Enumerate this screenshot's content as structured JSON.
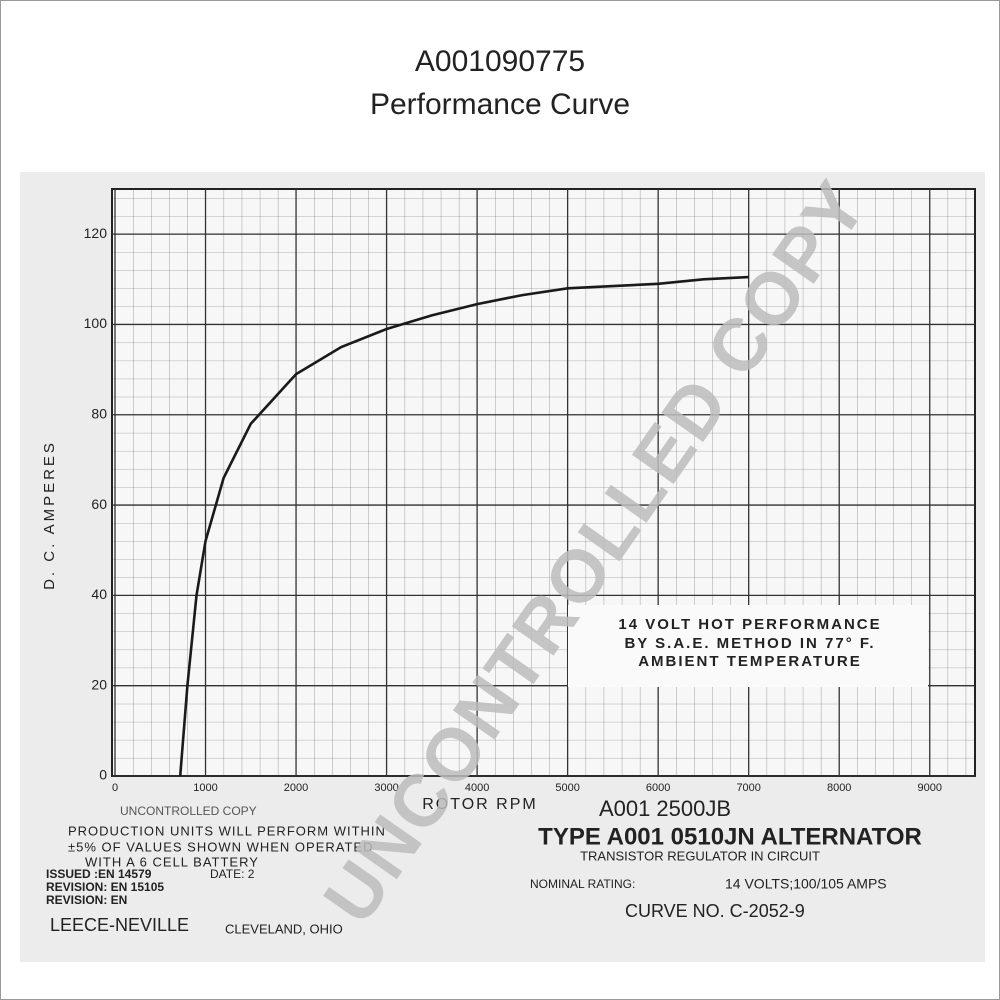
{
  "chart_data": {
    "type": "line",
    "title": "A001090775",
    "subtitle": "Performance Curve",
    "x_label": "ROTOR RPM",
    "y_label": "D. C. AMPERES",
    "x": [
      720,
      800,
      900,
      1000,
      1200,
      1500,
      2000,
      2500,
      3000,
      3500,
      4000,
      4500,
      5000,
      5500,
      6000,
      6500,
      7000
    ],
    "values": [
      0,
      20,
      40,
      52,
      66,
      78,
      89,
      95,
      99,
      102,
      104.5,
      106.5,
      108,
      108.5,
      109,
      110,
      110.5
    ],
    "color": "#1a1a1a",
    "xlim": [
      0,
      9500
    ],
    "ylim": [
      0,
      130
    ],
    "xticks": [
      0,
      1000,
      2000,
      3000,
      4000,
      5000,
      6000,
      7000,
      8000,
      9000
    ],
    "yticks": [
      0,
      20,
      40,
      60,
      80,
      100,
      120
    ],
    "grid": true,
    "annotation": [
      "14 VOLT HOT PERFORMANCE",
      "BY S.A.E. METHOD IN 77° F.",
      "AMBIENT TEMPERATURE"
    ],
    "watermark": "UNCONTROLLED COPY",
    "stamp": "UNCONTROLLED COPY",
    "notes": [
      "A001 2500JB",
      "TYPE A001 0510JN ALTERNATOR",
      "TRANSISTOR REGULATOR IN CIRCUIT",
      "NOMINAL RATING:",
      "14 VOLTS;100/105 AMPS",
      "CURVE NO. C-2052-9",
      "PRODUCTION UNITS WILL PERFORM WITHIN",
      "±5% OF VALUES SHOWN WHEN OPERATED",
      "WITH A 6 CELL BATTERY",
      "ISSUED :EN 14579",
      "DATE: 2",
      "REVISION: EN 15105",
      "REVISION: EN",
      "LEECE-NEVILLE",
      "CLEVELAND, OHIO"
    ]
  }
}
